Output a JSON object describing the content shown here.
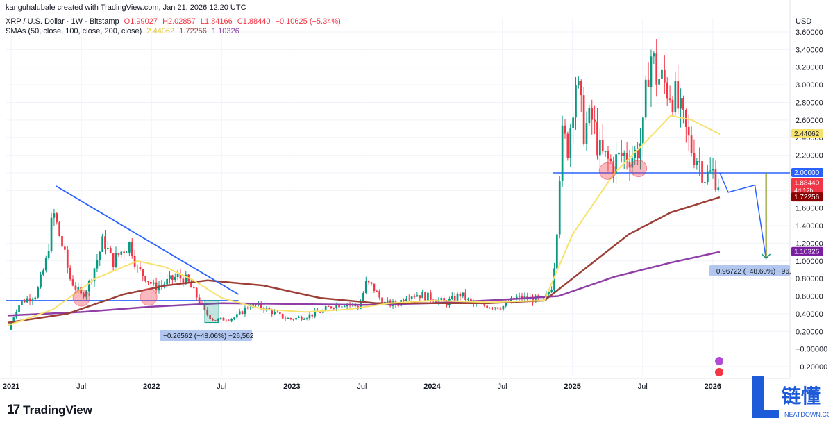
{
  "header": {
    "line1": "kanguhalubale created with TradingView.com, Jan 21, 2026 12:20 UTC",
    "symbol": "XRP / U.S. Dollar · 1W · Bitstamp",
    "ohlc": {
      "o": "O1.99027",
      "h": "H2.02857",
      "l": "L1.84166",
      "c": "C1.88440",
      "chg": "−0.10625 (−5.34%)"
    },
    "sma_label": "SMAs (50, close, 100, close, 200, close)",
    "sma_vals": [
      "2.44062",
      "1.72256",
      "1.10326"
    ]
  },
  "currency": "USD",
  "brand": "TradingView",
  "watermark": {
    "chars": "链懂",
    "site": "NEATDOWN.COM"
  },
  "colors": {
    "up": "#089981",
    "down": "#f23645",
    "sma50": "#f7e26b",
    "sma100": "#9c3f36",
    "sma200": "#8e3ea6",
    "trend": "#2962ff",
    "bg": "#ffffff"
  },
  "chart_data": {
    "type": "candlestick",
    "y_axis": {
      "min": -0.2,
      "max": 3.6,
      "ticks": [
        "3.60000",
        "3.40000",
        "3.20000",
        "3.00000",
        "2.80000",
        "2.60000",
        "2.40000",
        "2.20000",
        "2.00000",
        "1.80000",
        "1.60000",
        "1.40000",
        "1.20000",
        "1.00000",
        "0.80000",
        "0.60000",
        "0.40000",
        "0.20000",
        "−0.00000",
        "−0.20000"
      ]
    },
    "x_axis": {
      "labels": [
        {
          "t": "2021",
          "x": 2021.0
        },
        {
          "t": "Jul",
          "x": 2021.5
        },
        {
          "t": "2022",
          "x": 2022.0
        },
        {
          "t": "Jul",
          "x": 2022.5
        },
        {
          "t": "2023",
          "x": 2023.0
        },
        {
          "t": "Jul",
          "x": 2023.5
        },
        {
          "t": "2024",
          "x": 2024.0
        },
        {
          "t": "Jul",
          "x": 2024.5
        },
        {
          "t": "2025",
          "x": 2025.0
        },
        {
          "t": "Jul",
          "x": 2025.5
        },
        {
          "t": "2026",
          "x": 2026.0
        }
      ],
      "min": 2020.96,
      "max": 2026.55
    },
    "price_path": [
      [
        2020.98,
        0.22
      ],
      [
        2021.05,
        0.5
      ],
      [
        2021.1,
        0.56
      ],
      [
        2021.18,
        0.62
      ],
      [
        2021.25,
        1.0
      ],
      [
        2021.3,
        1.55
      ],
      [
        2021.36,
        1.2
      ],
      [
        2021.42,
        0.8
      ],
      [
        2021.5,
        0.6
      ],
      [
        2021.55,
        0.72
      ],
      [
        2021.62,
        1.05
      ],
      [
        2021.66,
        1.25
      ],
      [
        2021.72,
        0.98
      ],
      [
        2021.78,
        1.1
      ],
      [
        2021.85,
        1.2
      ],
      [
        2021.9,
        0.9
      ],
      [
        2021.96,
        0.82
      ],
      [
        2022.02,
        0.7
      ],
      [
        2022.1,
        0.75
      ],
      [
        2022.18,
        0.82
      ],
      [
        2022.25,
        0.78
      ],
      [
        2022.32,
        0.6
      ],
      [
        2022.38,
        0.42
      ],
      [
        2022.45,
        0.32
      ],
      [
        2022.52,
        0.34
      ],
      [
        2022.6,
        0.36
      ],
      [
        2022.7,
        0.5
      ],
      [
        2022.78,
        0.48
      ],
      [
        2022.86,
        0.42
      ],
      [
        2022.95,
        0.35
      ],
      [
        2023.0,
        0.34
      ],
      [
        2023.1,
        0.37
      ],
      [
        2023.2,
        0.42
      ],
      [
        2023.3,
        0.5
      ],
      [
        2023.4,
        0.52
      ],
      [
        2023.48,
        0.47
      ],
      [
        2023.53,
        0.75
      ],
      [
        2023.58,
        0.7
      ],
      [
        2023.65,
        0.52
      ],
      [
        2023.75,
        0.5
      ],
      [
        2023.82,
        0.62
      ],
      [
        2023.9,
        0.62
      ],
      [
        2024.0,
        0.58
      ],
      [
        2024.1,
        0.52
      ],
      [
        2024.2,
        0.62
      ],
      [
        2024.3,
        0.5
      ],
      [
        2024.4,
        0.49
      ],
      [
        2024.5,
        0.48
      ],
      [
        2024.6,
        0.58
      ],
      [
        2024.7,
        0.57
      ],
      [
        2024.8,
        0.55
      ],
      [
        2024.85,
        0.7
      ],
      [
        2024.88,
        1.1
      ],
      [
        2024.92,
        2.4
      ],
      [
        2024.97,
        2.3
      ],
      [
        2025.02,
        3.1
      ],
      [
        2025.08,
        2.5
      ],
      [
        2025.14,
        2.6
      ],
      [
        2025.2,
        2.2
      ],
      [
        2025.28,
        2.1
      ],
      [
        2025.36,
        2.2
      ],
      [
        2025.44,
        2.2
      ],
      [
        2025.5,
        2.4
      ],
      [
        2025.55,
        3.4
      ],
      [
        2025.6,
        3.1
      ],
      [
        2025.66,
        3.0
      ],
      [
        2025.72,
        2.9
      ],
      [
        2025.78,
        2.6
      ],
      [
        2025.84,
        2.3
      ],
      [
        2025.9,
        2.15
      ],
      [
        2025.95,
        1.95
      ],
      [
        2026.0,
        2.0
      ],
      [
        2026.05,
        1.88
      ]
    ],
    "sma50": [
      [
        2020.98,
        0.27
      ],
      [
        2021.3,
        0.45
      ],
      [
        2021.6,
        0.8
      ],
      [
        2021.9,
        1.0
      ],
      [
        2022.1,
        0.93
      ],
      [
        2022.3,
        0.78
      ],
      [
        2022.5,
        0.58
      ],
      [
        2022.8,
        0.45
      ],
      [
        2023.1,
        0.42
      ],
      [
        2023.4,
        0.45
      ],
      [
        2023.7,
        0.52
      ],
      [
        2024.0,
        0.55
      ],
      [
        2024.4,
        0.53
      ],
      [
        2024.8,
        0.55
      ],
      [
        2025.0,
        1.3
      ],
      [
        2025.3,
        2.0
      ],
      [
        2025.55,
        2.4
      ],
      [
        2025.7,
        2.65
      ],
      [
        2025.85,
        2.6
      ],
      [
        2026.05,
        2.44062
      ]
    ],
    "sma100": [
      [
        2020.98,
        0.3
      ],
      [
        2021.4,
        0.4
      ],
      [
        2021.8,
        0.62
      ],
      [
        2022.1,
        0.72
      ],
      [
        2022.4,
        0.78
      ],
      [
        2022.8,
        0.72
      ],
      [
        2023.2,
        0.58
      ],
      [
        2023.6,
        0.52
      ],
      [
        2024.0,
        0.52
      ],
      [
        2024.4,
        0.52
      ],
      [
        2024.8,
        0.55
      ],
      [
        2025.0,
        0.8
      ],
      [
        2025.4,
        1.3
      ],
      [
        2025.7,
        1.55
      ],
      [
        2026.05,
        1.72256
      ]
    ],
    "sma200": [
      [
        2020.98,
        0.38
      ],
      [
        2021.5,
        0.42
      ],
      [
        2022.0,
        0.48
      ],
      [
        2022.5,
        0.52
      ],
      [
        2023.0,
        0.51
      ],
      [
        2023.5,
        0.5
      ],
      [
        2024.0,
        0.52
      ],
      [
        2024.5,
        0.56
      ],
      [
        2024.9,
        0.6
      ],
      [
        2025.3,
        0.82
      ],
      [
        2025.7,
        0.98
      ],
      [
        2026.05,
        1.10326
      ]
    ],
    "trendline": [
      [
        2021.32,
        1.85
      ],
      [
        2022.62,
        0.62
      ]
    ],
    "support_2021": {
      "y": 0.55,
      "x0": 2020.96,
      "x1": 2022.62
    },
    "resistance_2025": {
      "y": 2.0,
      "label": "2.00000",
      "x0": 2024.86,
      "x1": 2026.55
    },
    "projection": [
      [
        2026.05,
        2.0
      ],
      [
        2026.11,
        1.78
      ],
      [
        2026.3,
        1.86
      ],
      [
        2026.38,
        1.02
      ]
    ],
    "circles": [
      [
        2021.5,
        0.58
      ],
      [
        2021.98,
        0.59
      ],
      [
        2025.25,
        2.02
      ],
      [
        2025.47,
        2.05
      ]
    ],
    "measure_2022": {
      "x0": 2022.38,
      "x1": 2022.48,
      "y0": 0.55,
      "y1": 0.3,
      "label": "−0.26562 (−48.06%) −26,562"
    },
    "measure_2026": {
      "x": 2026.38,
      "y0": 2.0,
      "y1": 1.03,
      "label": "−0.96722 (−48.60%) −96,"
    },
    "price_tags": [
      {
        "v": 2.44062,
        "label": "2.44062",
        "color": "#f7e26b",
        "text_color": "#131722"
      },
      {
        "v": 2.0,
        "label": "2.00000",
        "color": "#2962ff",
        "text_color": "#ffffff"
      },
      {
        "v": 1.8844,
        "label": "1.88440",
        "sub": "4d 12h",
        "color": "#f23645",
        "text_color": "#ffffff"
      },
      {
        "v": 1.72256,
        "label": "1.72256",
        "color": "#8b0000",
        "text_color": "#ffffff"
      },
      {
        "v": 1.10326,
        "label": "1.10326",
        "color": "#7b1fa2",
        "text_color": "#ffffff"
      }
    ]
  }
}
